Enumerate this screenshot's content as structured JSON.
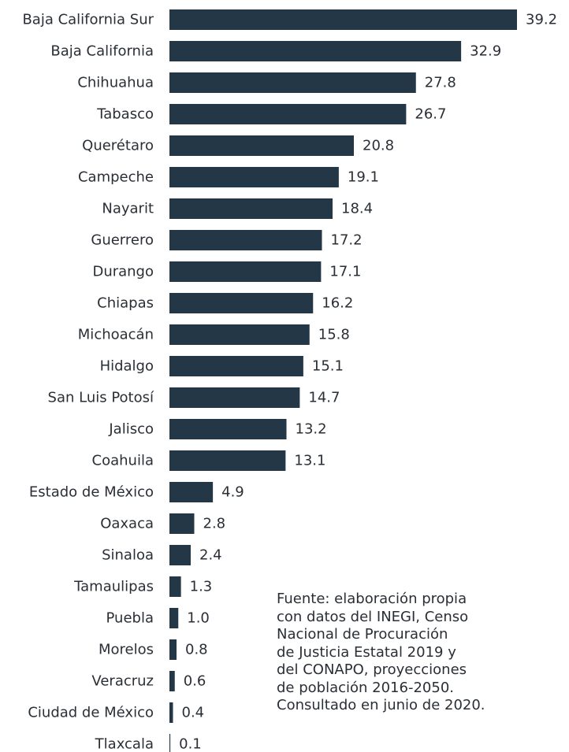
{
  "chart_data": {
    "type": "bar",
    "orientation": "horizontal",
    "categories": [
      "Baja California Sur",
      "Baja California",
      "Chihuahua",
      "Tabasco",
      "Querétaro",
      "Campeche",
      "Nayarit",
      "Guerrero",
      "Durango",
      "Chiapas",
      "Michoacán",
      "Hidalgo",
      "San Luis Potosí",
      "Jalisco",
      "Coahuila",
      "Estado de México",
      "Oaxaca",
      "Sinaloa",
      "Tamaulipas",
      "Puebla",
      "Morelos",
      "Veracruz",
      "Ciudad de México",
      "Tlaxcala"
    ],
    "values": [
      39.2,
      32.9,
      27.8,
      26.7,
      20.8,
      19.1,
      18.4,
      17.2,
      17.1,
      16.2,
      15.8,
      15.1,
      14.7,
      13.2,
      13.1,
      4.9,
      2.8,
      2.4,
      1.3,
      1.0,
      0.8,
      0.6,
      0.4,
      0.1
    ],
    "value_labels": [
      "39.2",
      "32.9",
      "27.8",
      "26.7",
      "20.8",
      "19.1",
      "18.4",
      "17.2",
      "17.1",
      "16.2",
      "15.8",
      "15.1",
      "14.7",
      "13.2",
      "13.1",
      "4.9",
      "2.8",
      "2.4",
      "1.3",
      "1.0",
      "0.8",
      "0.6",
      "0.4",
      "0.1"
    ],
    "title": "",
    "xlabel": "",
    "ylabel": "",
    "xlim": [
      0,
      39.2
    ],
    "grid": false,
    "legend": "none",
    "bar_color": "#243746"
  },
  "source_note": {
    "lines": [
      "Fuente: elaboración propia",
      "con datos del INEGI, Censo",
      "Nacional de Procuración",
      "de Justicia Estatal 2019 y",
      "del CONAPO, proyecciones",
      "de población 2016-2050.",
      "Consultado en junio de 2020."
    ]
  }
}
